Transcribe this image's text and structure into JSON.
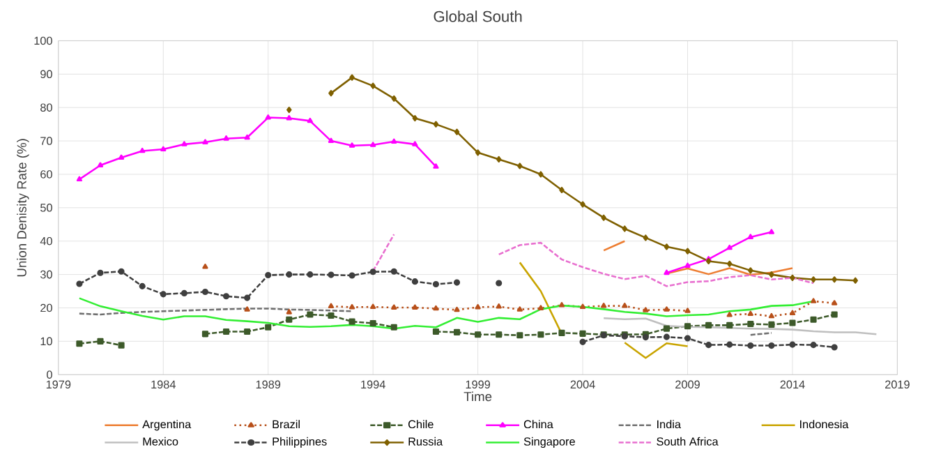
{
  "chart_data": {
    "type": "line",
    "title": "Global South",
    "xlabel": "Time",
    "ylabel": "Union Denisity Rate (%)",
    "xlim": [
      1979,
      2019
    ],
    "xticks": [
      1979,
      1984,
      1989,
      1994,
      1999,
      2004,
      2009,
      2014,
      2019
    ],
    "ylim": [
      0,
      100
    ],
    "yticks": [
      0,
      10,
      20,
      30,
      40,
      50,
      60,
      70,
      80,
      90,
      100
    ],
    "grid": true,
    "legend": "bottom",
    "series": [
      {
        "name": "Argentina",
        "color": "#ed7d31",
        "line_style": "solid",
        "marker": "none",
        "x": [
          2005,
          2006,
          2007,
          2008,
          2009,
          2010,
          2011,
          2012,
          2013,
          2014
        ],
        "values": [
          37.2,
          40,
          null,
          30.3,
          31.8,
          30.1,
          31.9,
          29.9,
          30.6,
          31.9
        ]
      },
      {
        "name": "Brazil",
        "color": "#b8501a",
        "line_style": "dotted",
        "marker": "triangle",
        "x": [
          1986,
          1987,
          1988,
          1989,
          1990,
          1991,
          1992,
          1993,
          1994,
          1995,
          1996,
          1997,
          1998,
          1999,
          2000,
          2001,
          2002,
          2003,
          2004,
          2005,
          2006,
          2007,
          2008,
          2009,
          2010,
          2011,
          2012,
          2013,
          2014,
          2015,
          2016
        ],
        "values": [
          32.3,
          null,
          19.5,
          null,
          18.7,
          null,
          20.5,
          20.2,
          20.3,
          20.1,
          20.1,
          19.8,
          19.4,
          20.2,
          20.4,
          19.5,
          19.9,
          20.8,
          20.3,
          20.6,
          20.6,
          19.3,
          19.5,
          19.1,
          null,
          17.9,
          18.2,
          17.5,
          18.4,
          22,
          21.4
        ]
      },
      {
        "name": "Chile",
        "color": "#3d5a2a",
        "line_style": "dashed",
        "marker": "square",
        "x": [
          1980,
          1981,
          1982,
          1983,
          1984,
          1985,
          1986,
          1987,
          1988,
          1989,
          1990,
          1991,
          1992,
          1993,
          1994,
          1995,
          1996,
          1997,
          1998,
          1999,
          2000,
          2001,
          2002,
          2003,
          2004,
          2005,
          2006,
          2007,
          2008,
          2009,
          2010,
          2011,
          2012,
          2013,
          2014,
          2015,
          2016
        ],
        "values": [
          9.3,
          10,
          8.8,
          null,
          null,
          null,
          12.2,
          12.9,
          12.9,
          14.2,
          16.5,
          18,
          17.7,
          15.9,
          15.4,
          14.2,
          null,
          12.9,
          12.7,
          12,
          12,
          11.8,
          12,
          12.5,
          12.3,
          12,
          12,
          12.1,
          13.8,
          14.5,
          14.8,
          14.8,
          15.2,
          15,
          15.5,
          16.5,
          18
        ]
      },
      {
        "name": "China",
        "color": "#ff00ff",
        "line_style": "solid",
        "marker": "triangle",
        "x": [
          1980,
          1981,
          1982,
          1983,
          1984,
          1985,
          1986,
          1987,
          1988,
          1989,
          1990,
          1991,
          1992,
          1993,
          1994,
          1995,
          1996,
          1997,
          1998,
          2008,
          2009,
          2010,
          2011,
          2012,
          2013
        ],
        "values": [
          58.5,
          62.7,
          65,
          67,
          67.5,
          69,
          69.6,
          70.7,
          71,
          77,
          76.8,
          76,
          70,
          68.6,
          68.8,
          69.8,
          69,
          62.3,
          null,
          30.5,
          32.6,
          34.6,
          38,
          41.2,
          42.7
        ]
      },
      {
        "name": "India",
        "color": "#6f6f6f",
        "line_style": "dashed",
        "marker": "none",
        "x": [
          1980,
          1981,
          1982,
          1983,
          1984,
          1985,
          1986,
          1987,
          1988,
          1989,
          1990,
          1991,
          1992,
          1993,
          1994,
          2012,
          2013
        ],
        "values": [
          18.3,
          18,
          18.5,
          18.8,
          19,
          19.2,
          19.4,
          19.6,
          19.8,
          19.8,
          19.5,
          19.4,
          19.2,
          19,
          null,
          11.9,
          12.5
        ]
      },
      {
        "name": "Indonesia",
        "color": "#c9a400",
        "line_style": "solid",
        "marker": "none",
        "x": [
          2001,
          2002,
          2003,
          2004,
          2006,
          2007,
          2008,
          2009
        ],
        "values": [
          33.6,
          25,
          12.2,
          null,
          9.6,
          5,
          9.4,
          8.5
        ]
      },
      {
        "name": "Mexico",
        "color": "#bfbfbf",
        "line_style": "solid",
        "marker": "none",
        "x": [
          2005,
          2006,
          2007,
          2008,
          2009,
          2010,
          2011,
          2012,
          2013,
          2014,
          2015,
          2016,
          2017,
          2018
        ],
        "values": [
          16.9,
          16.6,
          16.8,
          14.6,
          14.3,
          14.2,
          14,
          13.8,
          13.7,
          13.5,
          13,
          12.7,
          12.7,
          12.1
        ]
      },
      {
        "name": "Philippines",
        "color": "#3f3f3f",
        "line_style": "dashed",
        "marker": "circle",
        "x": [
          1980,
          1981,
          1982,
          1983,
          1984,
          1985,
          1986,
          1987,
          1988,
          1989,
          1990,
          1991,
          1992,
          1993,
          1994,
          1995,
          1996,
          1997,
          1998,
          1999,
          2000,
          2001,
          2004,
          2005,
          2006,
          2007,
          2008,
          2009,
          2010,
          2011,
          2012,
          2013,
          2014,
          2015,
          2016
        ],
        "values": [
          27.2,
          30.5,
          30.9,
          26.5,
          24.1,
          24.4,
          24.8,
          23.5,
          23,
          29.8,
          30,
          30,
          29.9,
          29.7,
          30.8,
          30.9,
          27.9,
          27.1,
          27.6,
          null,
          27.4,
          null,
          9.8,
          11.8,
          11.5,
          11.2,
          11.3,
          10.9,
          8.9,
          9,
          8.7,
          8.7,
          9,
          8.9,
          8.2
        ]
      },
      {
        "name": "Russia",
        "color": "#7f6000",
        "line_style": "solid",
        "marker": "diamond",
        "x": [
          1990,
          1991,
          1992,
          1993,
          1994,
          1995,
          1996,
          1997,
          1998,
          1999,
          2000,
          2001,
          2002,
          2003,
          2004,
          2005,
          2006,
          2007,
          2008,
          2009,
          2010,
          2011,
          2012,
          2013,
          2014,
          2015,
          2016,
          2017
        ],
        "values": [
          79.3,
          null,
          84.3,
          89,
          86.5,
          82.7,
          76.8,
          75,
          72.7,
          66.5,
          64.5,
          62.5,
          60,
          55.3,
          51,
          47,
          43.7,
          41,
          38.3,
          37,
          34,
          33.2,
          31.2,
          30,
          29,
          28.5,
          28.5,
          28.2
        ]
      },
      {
        "name": "Singapore",
        "color": "#33ee33",
        "line_style": "solid",
        "marker": "none",
        "x": [
          1980,
          1981,
          1982,
          1983,
          1984,
          1985,
          1986,
          1987,
          1988,
          1989,
          1990,
          1991,
          1992,
          1993,
          1994,
          1995,
          1996,
          1997,
          1998,
          1999,
          2000,
          2001,
          2002,
          2003,
          2004,
          2005,
          2006,
          2007,
          2008,
          2009,
          2010,
          2011,
          2012,
          2013,
          2014,
          2015
        ],
        "values": [
          22.9,
          20.5,
          19,
          17.6,
          16.5,
          17.5,
          17.5,
          16.4,
          16,
          15.5,
          14.5,
          14.3,
          14.5,
          14.9,
          14.5,
          13.8,
          14.6,
          14.2,
          17,
          15.8,
          17,
          16.6,
          19.6,
          20.7,
          20.3,
          19.6,
          18.8,
          18.3,
          17.5,
          17.8,
          18,
          19,
          19.5,
          20.6,
          20.8,
          22
        ]
      },
      {
        "name": "South Africa",
        "color": "#e86fcf",
        "line_style": "dashed",
        "marker": "none",
        "x": [
          1994,
          1995,
          1996,
          2000,
          2001,
          2002,
          2003,
          2004,
          2005,
          2006,
          2007,
          2008,
          2009,
          2010,
          2011,
          2012,
          2013,
          2014,
          2015
        ],
        "values": [
          31,
          42,
          null,
          36,
          38.8,
          39.5,
          34.5,
          32.2,
          30.2,
          28.6,
          29.6,
          26.5,
          27.7,
          28,
          29.2,
          29.8,
          28.5,
          29,
          27.4
        ]
      }
    ]
  }
}
